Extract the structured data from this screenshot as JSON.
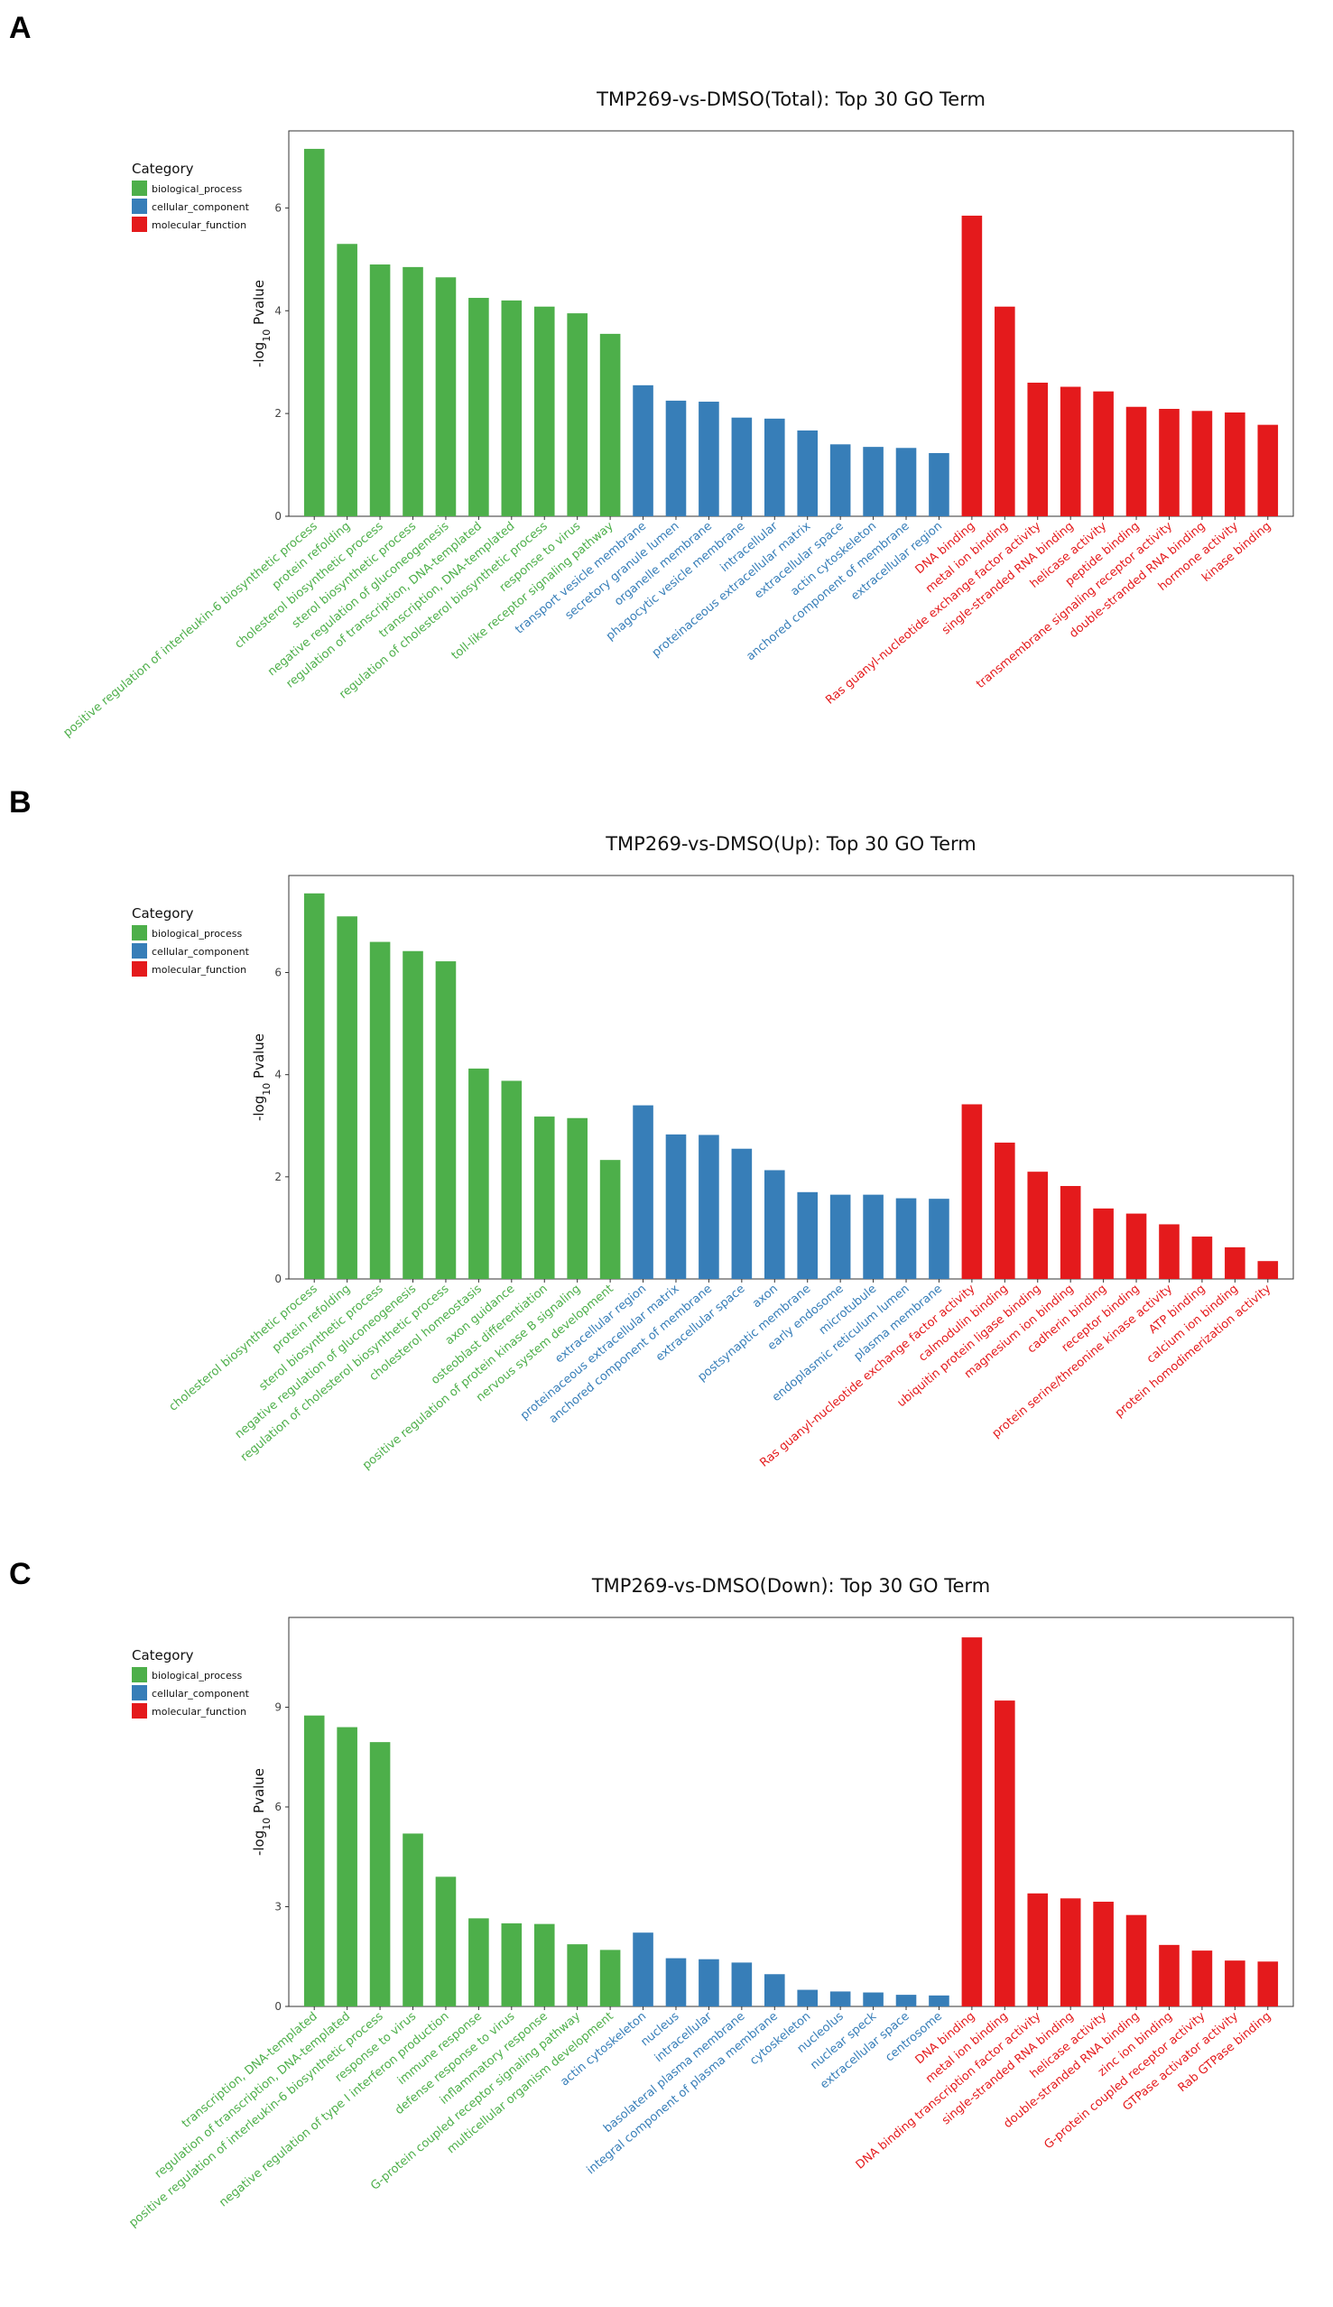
{
  "colors": {
    "biological_process": "#4daf4a",
    "cellular_component": "#377eb8",
    "molecular_function": "#e41a1c"
  },
  "chart_data": [
    {
      "type": "bar",
      "panel_letter": "A",
      "title": "TMP269-vs-DMSO(Total): Top 30 GO Term",
      "ylabel": "-log10 Pvalue",
      "ylim": [
        0,
        7.5
      ],
      "yticks": [
        0,
        2,
        4,
        6
      ],
      "legend": {
        "title": "Category",
        "entries": [
          "biological_process",
          "cellular_component",
          "molecular_function"
        ]
      },
      "categories": [
        "positive regulation of interleukin-6 biosynthetic process",
        "protein refolding",
        "cholesterol biosynthetic process",
        "sterol biosynthetic process",
        "negative regulation of gluconeogenesis",
        "regulation of transcription, DNA-templated",
        "transcription, DNA-templated",
        "regulation of cholesterol biosynthetic process",
        "response to virus",
        "toll-like receptor signaling pathway",
        "transport vesicle membrane",
        "secretory granule lumen",
        "organelle membrane",
        "phagocytic vesicle membrane",
        "intracellular",
        "proteinaceous extracellular matrix",
        "extracellular space",
        "actin cytoskeleton",
        "anchored component of membrane",
        "extracellular region",
        "DNA binding",
        "metal ion binding",
        "Ras guanyl-nucleotide exchange factor activity",
        "single-stranded RNA binding",
        "helicase activity",
        "peptide binding",
        "transmembrane signaling receptor activity",
        "double-stranded RNA binding",
        "hormone activity",
        "kinase binding"
      ],
      "values": [
        7.15,
        5.3,
        4.9,
        4.85,
        4.65,
        4.25,
        4.2,
        4.08,
        3.95,
        3.55,
        2.55,
        2.25,
        2.23,
        1.92,
        1.9,
        1.67,
        1.4,
        1.35,
        1.33,
        1.23,
        5.85,
        4.08,
        2.6,
        2.52,
        2.43,
        2.13,
        2.09,
        2.05,
        2.02,
        1.78
      ],
      "groups": [
        "biological_process",
        "biological_process",
        "biological_process",
        "biological_process",
        "biological_process",
        "biological_process",
        "biological_process",
        "biological_process",
        "biological_process",
        "biological_process",
        "cellular_component",
        "cellular_component",
        "cellular_component",
        "cellular_component",
        "cellular_component",
        "cellular_component",
        "cellular_component",
        "cellular_component",
        "cellular_component",
        "cellular_component",
        "molecular_function",
        "molecular_function",
        "molecular_function",
        "molecular_function",
        "molecular_function",
        "molecular_function",
        "molecular_function",
        "molecular_function",
        "molecular_function",
        "molecular_function"
      ]
    },
    {
      "type": "bar",
      "panel_letter": "B",
      "title": "TMP269-vs-DMSO(Up): Top 30 GO Term",
      "ylabel": "-log10 Pvalue",
      "ylim": [
        0,
        7.9
      ],
      "yticks": [
        0,
        2,
        4,
        6
      ],
      "legend": {
        "title": "Category",
        "entries": [
          "biological_process",
          "cellular_component",
          "molecular_function"
        ]
      },
      "categories": [
        "cholesterol biosynthetic process",
        "protein refolding",
        "sterol biosynthetic process",
        "negative regulation of gluconeogenesis",
        "regulation of cholesterol biosynthetic process",
        "cholesterol homeostasis",
        "axon guidance",
        "osteoblast differentiation",
        "positive regulation of protein kinase B signaling",
        "nervous system development",
        "extracellular region",
        "proteinaceous extracellular matrix",
        "anchored component of membrane",
        "extracellular space",
        "axon",
        "postsynaptic membrane",
        "early endosome",
        "microtubule",
        "endoplasmic reticulum lumen",
        "plasma membrane",
        "Ras guanyl-nucleotide exchange factor activity",
        "calmodulin binding",
        "ubiquitin protein ligase binding",
        "magnesium ion binding",
        "cadherin binding",
        "receptor binding",
        "protein serine/threonine kinase activity",
        "ATP binding",
        "calcium ion binding",
        "protein homodimerization activity"
      ],
      "values": [
        7.55,
        7.1,
        6.6,
        6.42,
        6.22,
        4.12,
        3.88,
        3.18,
        3.15,
        2.33,
        3.4,
        2.83,
        2.82,
        2.55,
        2.13,
        1.7,
        1.65,
        1.65,
        1.58,
        1.57,
        3.42,
        2.67,
        2.1,
        1.82,
        1.38,
        1.28,
        1.07,
        0.83,
        0.62,
        0.35
      ],
      "groups": [
        "biological_process",
        "biological_process",
        "biological_process",
        "biological_process",
        "biological_process",
        "biological_process",
        "biological_process",
        "biological_process",
        "biological_process",
        "biological_process",
        "cellular_component",
        "cellular_component",
        "cellular_component",
        "cellular_component",
        "cellular_component",
        "cellular_component",
        "cellular_component",
        "cellular_component",
        "cellular_component",
        "cellular_component",
        "molecular_function",
        "molecular_function",
        "molecular_function",
        "molecular_function",
        "molecular_function",
        "molecular_function",
        "molecular_function",
        "molecular_function",
        "molecular_function",
        "molecular_function"
      ]
    },
    {
      "type": "bar",
      "panel_letter": "C",
      "title": "TMP269-vs-DMSO(Down): Top 30 GO Term",
      "ylabel": "-log10 Pvalue",
      "ylim": [
        0,
        11.7
      ],
      "yticks": [
        0,
        3,
        6,
        9
      ],
      "legend": {
        "title": "Category",
        "entries": [
          "biological_process",
          "cellular_component",
          "molecular_function"
        ]
      },
      "categories": [
        "transcription, DNA-templated",
        "regulation of transcription, DNA-templated",
        "positive regulation of interleukin-6 biosynthetic process",
        "response to virus",
        "negative regulation of type I interferon production",
        "immune response",
        "defense response to virus",
        "inflammatory response",
        "G-protein coupled receptor signaling pathway",
        "multicellular organism development",
        "actin cytoskeleton",
        "nucleus",
        "intracellular",
        "basolateral plasma membrane",
        "integral component of plasma membrane",
        "cytoskeleton",
        "nucleolus",
        "nuclear speck",
        "extracellular space",
        "centrosome",
        "DNA binding",
        "metal ion binding",
        "DNA binding transcription factor activity",
        "single-stranded RNA binding",
        "helicase activity",
        "double-stranded RNA binding",
        "zinc ion binding",
        "G-protein coupled receptor activity",
        "GTPase activator activity",
        "Rab GTPase binding"
      ],
      "values": [
        8.75,
        8.4,
        7.95,
        5.2,
        3.9,
        2.65,
        2.5,
        2.48,
        1.87,
        1.7,
        2.22,
        1.45,
        1.42,
        1.32,
        0.97,
        0.5,
        0.45,
        0.42,
        0.35,
        0.33,
        11.1,
        9.2,
        3.4,
        3.25,
        3.15,
        2.75,
        1.85,
        1.68,
        1.38,
        1.35
      ],
      "groups": [
        "biological_process",
        "biological_process",
        "biological_process",
        "biological_process",
        "biological_process",
        "biological_process",
        "biological_process",
        "biological_process",
        "biological_process",
        "biological_process",
        "cellular_component",
        "cellular_component",
        "cellular_component",
        "cellular_component",
        "cellular_component",
        "cellular_component",
        "cellular_component",
        "cellular_component",
        "cellular_component",
        "cellular_component",
        "molecular_function",
        "molecular_function",
        "molecular_function",
        "molecular_function",
        "molecular_function",
        "molecular_function",
        "molecular_function",
        "molecular_function",
        "molecular_function",
        "molecular_function"
      ]
    }
  ]
}
